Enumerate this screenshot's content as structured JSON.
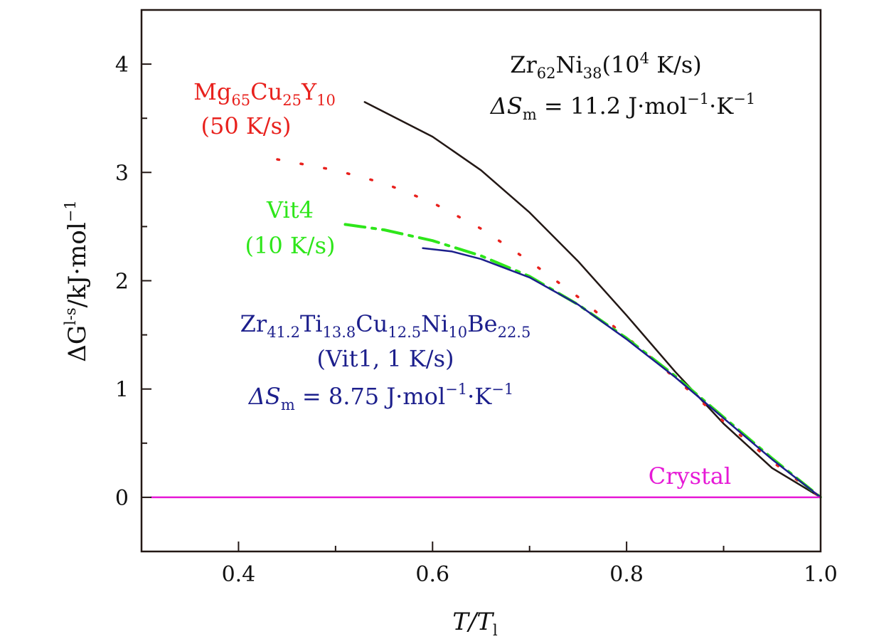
{
  "chart_data": {
    "type": "line",
    "xlabel": "T/T_l",
    "ylabel": "ΔG^{l-s}/kJ·mol^{-1}",
    "xlim": [
      0.3,
      1.0
    ],
    "ylim": [
      -0.5,
      4.5
    ],
    "x_ticks": [
      "0.4",
      "0.6",
      "0.8",
      "1.0"
    ],
    "y_ticks": [
      "0",
      "1",
      "2",
      "3",
      "4"
    ],
    "grid": false,
    "series": [
      {
        "name": "Zr62Ni38",
        "color": "#231815",
        "style": "solid",
        "x": [
          0.53,
          0.6,
          0.65,
          0.7,
          0.75,
          0.8,
          0.85,
          0.9,
          0.95,
          1.0
        ],
        "y": [
          3.65,
          3.33,
          3.02,
          2.63,
          2.18,
          1.68,
          1.16,
          0.68,
          0.27,
          0.0
        ]
      },
      {
        "name": "Mg65Cu25Y10",
        "color": "#e8211d",
        "style": "dotted",
        "x": [
          0.44,
          0.5,
          0.55,
          0.6,
          0.65,
          0.7,
          0.75,
          0.8,
          0.85,
          0.9,
          0.95,
          1.0
        ],
        "y": [
          3.12,
          3.02,
          2.9,
          2.72,
          2.48,
          2.18,
          1.85,
          1.48,
          1.1,
          0.7,
          0.33,
          0.0
        ]
      },
      {
        "name": "Vit4",
        "color": "#2ee61a",
        "style": "dashdot",
        "x": [
          0.51,
          0.55,
          0.6,
          0.65,
          0.7,
          0.75,
          0.8,
          0.85,
          0.9,
          0.95,
          1.0
        ],
        "y": [
          2.52,
          2.47,
          2.37,
          2.23,
          2.04,
          1.78,
          1.47,
          1.12,
          0.74,
          0.36,
          0.0
        ]
      },
      {
        "name": "Vit1",
        "color": "#1c1f8c",
        "style": "solid",
        "x": [
          0.59,
          0.62,
          0.65,
          0.7,
          0.75,
          0.8,
          0.85,
          0.9,
          0.95,
          1.0
        ],
        "y": [
          2.3,
          2.27,
          2.2,
          2.03,
          1.78,
          1.46,
          1.11,
          0.73,
          0.35,
          0.0
        ]
      },
      {
        "name": "Crystal",
        "color": "#e619d6",
        "style": "solid",
        "x": [
          0.31,
          1.0
        ],
        "y": [
          0.0,
          0.0
        ]
      }
    ],
    "annotations": {
      "zr62": {
        "line1": {
          "a": "Zr",
          "s1": "62",
          "b": "Ni",
          "s2": "38",
          "c": "(10",
          "sup": "4",
          "d": " K/s)"
        },
        "line2": {
          "a": "ΔS",
          "sub": "m",
          "b": " = 11.2  J·mol",
          "sup1": "−1",
          "c": "·K",
          "sup2": "−1"
        },
        "color": "#111111"
      },
      "mg": {
        "line1": {
          "a": "Mg",
          "s1": "65",
          "b": "Cu",
          "s2": "25",
          "c": "Y",
          "s3": "10"
        },
        "line2": "(50 K/s)",
        "color": "#e8211d"
      },
      "vit4": {
        "line1": "Vit4",
        "line2": "(10 K/s)",
        "color": "#2ee61a"
      },
      "vit1": {
        "line1": {
          "a": "Zr",
          "s1": "41.2",
          "b": "Ti",
          "s2": "13.8",
          "c": "Cu",
          "s3": "12.5",
          "d": "Ni",
          "s4": "10",
          "e": "Be",
          "s5": "22.5"
        },
        "line2": "(Vit1, 1 K/s)",
        "line3": {
          "a": "ΔS",
          "sub": "m",
          "b": " = 8.75  J·mol",
          "sup1": "−1",
          "c": "·K",
          "sup2": "−1"
        },
        "color": "#1c1f8c"
      },
      "crystal": {
        "text": "Crystal",
        "color": "#e619d6"
      }
    }
  }
}
